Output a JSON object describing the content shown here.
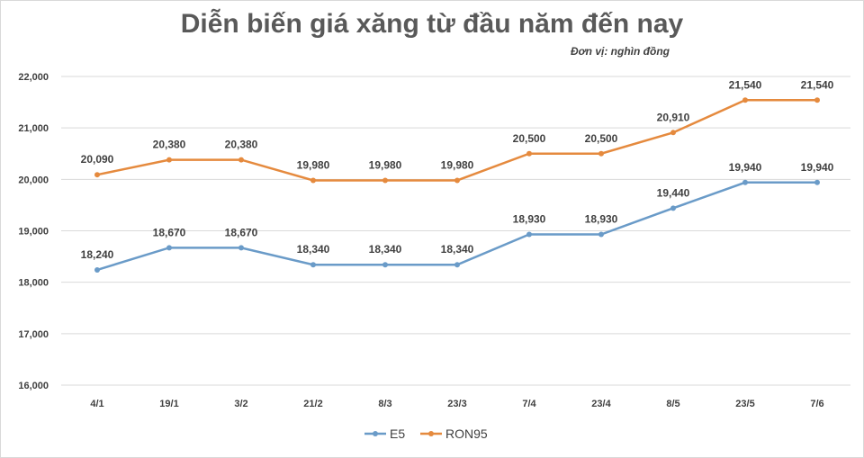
{
  "chart_data": {
    "type": "line",
    "title": "Diễn biến giá xăng từ đầu năm đến nay",
    "subtitle": "Đơn vị: nghìn đồng",
    "categories": [
      "4/1",
      "19/1",
      "3/2",
      "21/2",
      "8/3",
      "23/3",
      "7/4",
      "23/4",
      "8/5",
      "23/5",
      "7/6"
    ],
    "ylim": [
      16000,
      22000
    ],
    "yticks": [
      16000,
      17000,
      18000,
      19000,
      20000,
      21000,
      22000
    ],
    "ytick_labels": [
      "16,000",
      "17,000",
      "18,000",
      "19,000",
      "20,000",
      "21,000",
      "22,000"
    ],
    "grid": true,
    "legend_position": "bottom",
    "series": [
      {
        "name": "E5",
        "color": "#6a9bc8",
        "values": [
          18240,
          18670,
          18670,
          18340,
          18340,
          18340,
          18930,
          18930,
          19440,
          19940,
          19940
        ]
      },
      {
        "name": "RON95",
        "color": "#e58a3e",
        "values": [
          20090,
          20380,
          20380,
          19980,
          19980,
          19980,
          20500,
          20500,
          20910,
          21540,
          21540
        ]
      }
    ]
  }
}
